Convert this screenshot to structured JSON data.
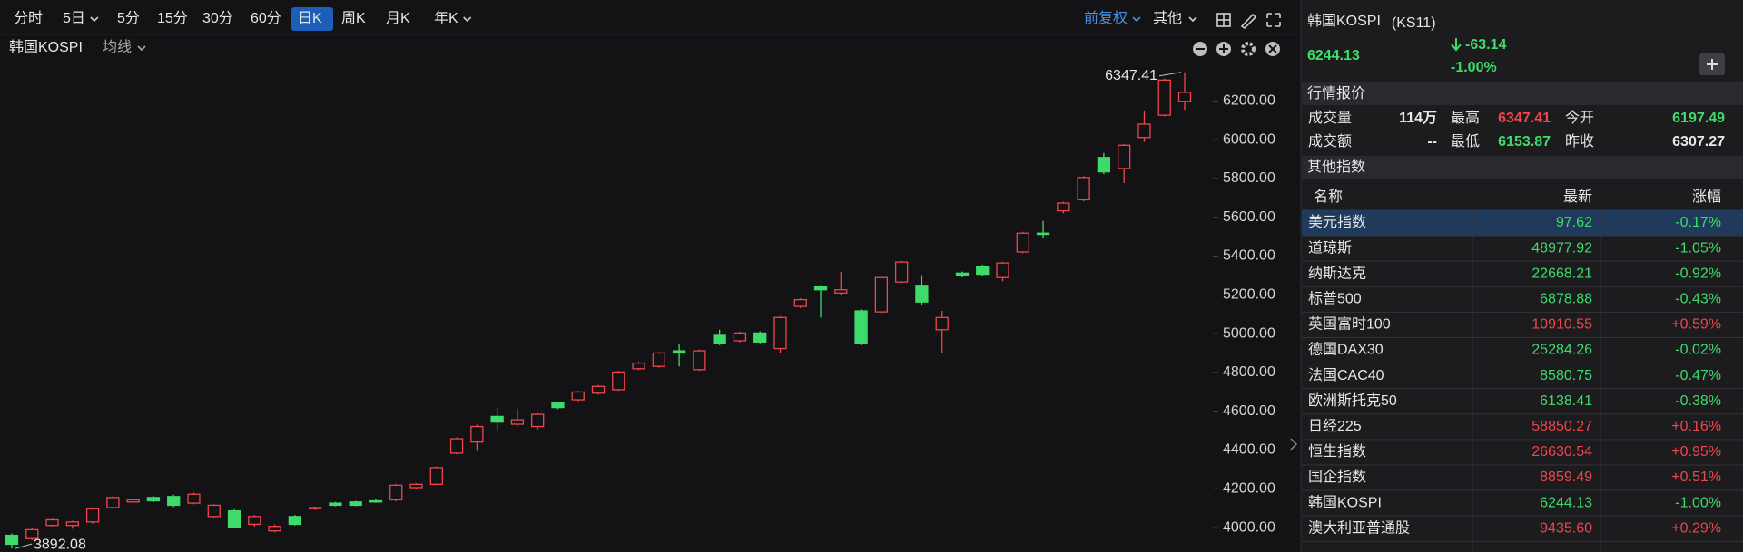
{
  "toolbar": {
    "periods": [
      "分时",
      "5日",
      "5分",
      "15分",
      "30分",
      "60分",
      "日K",
      "周K",
      "月K",
      "年K"
    ],
    "selected": 6,
    "adjust": "前复权",
    "other": "其他"
  },
  "chart_data": {
    "type": "candlestick",
    "title": "韩国KOSPI",
    "indicator": "均线",
    "up_color": "#f0454a",
    "down_color": "#3ddc6a",
    "ohlc": [
      [
        3960,
        3970,
        3892.08,
        3914
      ],
      [
        3943,
        4000,
        3935,
        3989
      ],
      [
        4011,
        4050,
        4005,
        4040
      ],
      [
        4011,
        4035,
        3994,
        4029
      ],
      [
        4029,
        4105,
        4020,
        4097
      ],
      [
        4103,
        4165,
        4095,
        4155
      ],
      [
        4132,
        4150,
        4125,
        4143
      ],
      [
        4155,
        4165,
        4130,
        4138
      ],
      [
        4160,
        4170,
        4105,
        4115
      ],
      [
        4126,
        4180,
        4120,
        4172
      ],
      [
        4057,
        4120,
        4050,
        4115
      ],
      [
        4086,
        4095,
        3995,
        4000
      ],
      [
        4017,
        4065,
        4005,
        4057
      ],
      [
        3983,
        4015,
        3975,
        4006
      ],
      [
        4057,
        4065,
        4010,
        4017
      ],
      [
        4097,
        4108,
        4090,
        4103
      ],
      [
        4126,
        4132,
        4110,
        4115
      ],
      [
        4132,
        4138,
        4110,
        4115
      ],
      [
        4138,
        4145,
        4128,
        4132
      ],
      [
        4143,
        4225,
        4135,
        4218
      ],
      [
        4206,
        4228,
        4200,
        4223
      ],
      [
        4223,
        4315,
        4218,
        4309
      ],
      [
        4384,
        4465,
        4378,
        4458
      ],
      [
        4441,
        4530,
        4395,
        4521
      ],
      [
        4573,
        4619,
        4499,
        4544
      ],
      [
        4533,
        4613,
        4525,
        4556
      ],
      [
        4521,
        4590,
        4505,
        4584
      ],
      [
        4642,
        4650,
        4610,
        4619
      ],
      [
        4659,
        4705,
        4652,
        4699
      ],
      [
        4693,
        4735,
        4686,
        4728
      ],
      [
        4711,
        4808,
        4705,
        4802
      ],
      [
        4819,
        4855,
        4812,
        4848
      ],
      [
        4831,
        4905,
        4825,
        4900
      ],
      [
        4911,
        4945,
        4831,
        4900
      ],
      [
        4814,
        4918,
        4808,
        4911
      ],
      [
        4991,
        5020,
        4940,
        4951
      ],
      [
        4963,
        5010,
        4955,
        5003
      ],
      [
        5003,
        5012,
        4950,
        4957
      ],
      [
        4923,
        5090,
        4900,
        5083
      ],
      [
        5140,
        5182,
        5132,
        5175
      ],
      [
        5243,
        5250,
        5083,
        5226
      ],
      [
        5209,
        5318,
        5200,
        5226
      ],
      [
        5117,
        5125,
        4940,
        4951
      ],
      [
        5112,
        5296,
        5105,
        5289
      ],
      [
        5266,
        5375,
        5258,
        5369
      ],
      [
        5249,
        5301,
        5150,
        5163
      ],
      [
        5020,
        5117,
        4900,
        5083
      ],
      [
        5312,
        5320,
        5290,
        5301
      ],
      [
        5347,
        5355,
        5298,
        5306
      ],
      [
        5289,
        5370,
        5270,
        5364
      ],
      [
        5421,
        5525,
        5415,
        5518
      ],
      [
        5518,
        5581,
        5490,
        5513
      ],
      [
        5633,
        5680,
        5620,
        5673
      ],
      [
        5690,
        5812,
        5682,
        5805
      ],
      [
        5908,
        5931,
        5822,
        5834
      ],
      [
        5851,
        5978,
        5776,
        5971
      ],
      [
        6011,
        6149,
        5988,
        6080
      ],
      [
        6126,
        6315,
        6120,
        6307.27
      ],
      [
        6197.49,
        6347.41,
        6153.87,
        6244.13
      ]
    ],
    "ylim": [
      3874,
      6407
    ],
    "yticks": [
      {
        "value": 4000,
        "label": "4000.00"
      },
      {
        "value": 4200,
        "label": "4200.00"
      },
      {
        "value": 4400,
        "label": "4400.00"
      },
      {
        "value": 4600,
        "label": "4600.00"
      },
      {
        "value": 4800,
        "label": "4800.00"
      },
      {
        "value": 5000,
        "label": "5000.00"
      },
      {
        "value": 5200,
        "label": "5200.00"
      },
      {
        "value": 5400,
        "label": "5400.00"
      },
      {
        "value": 5600,
        "label": "5600.00"
      },
      {
        "value": 5800,
        "label": "5800.00"
      },
      {
        "value": 6000,
        "label": "6000.00"
      },
      {
        "value": 6200,
        "label": "6200.00"
      }
    ],
    "grid": false
  },
  "quote": {
    "name": "韩国KOSPI",
    "code": "(KS11)",
    "price": "6244.13",
    "change": "-63.14",
    "change_pct": "-1.00%",
    "section": "行情报价",
    "stats": [
      {
        "label": "成交量",
        "value": "114万",
        "color": "#e8e8e8"
      },
      {
        "label": "最高",
        "value": "6347.41",
        "color": "#f0454a"
      },
      {
        "label": "今开",
        "value": "6197.49",
        "color": "#3ddc6a"
      },
      {
        "label": "成交额",
        "value": "--",
        "color": "#e8e8e8"
      },
      {
        "label": "最低",
        "value": "6153.87",
        "color": "#3ddc6a"
      },
      {
        "label": "昨收",
        "value": "6307.27",
        "color": "#e8e8e8"
      }
    ]
  },
  "indices": {
    "title": "其他指数",
    "columns": [
      "名称",
      "最新",
      "涨幅"
    ],
    "selected": 0,
    "rows": [
      [
        "美元指数",
        "97.62",
        "-0.17%"
      ],
      [
        "道琼斯",
        "48977.92",
        "-1.05%"
      ],
      [
        "纳斯达克",
        "22668.21",
        "-0.92%"
      ],
      [
        "标普500",
        "6878.88",
        "-0.43%"
      ],
      [
        "英国富时100",
        "10910.55",
        "+0.59%"
      ],
      [
        "德国DAX30",
        "25284.26",
        "-0.02%"
      ],
      [
        "法国CAC40",
        "8580.75",
        "-0.47%"
      ],
      [
        "欧洲斯托克50",
        "6138.41",
        "-0.38%"
      ],
      [
        "日经225",
        "58850.27",
        "+0.16%"
      ],
      [
        "恒生指数",
        "26630.54",
        "+0.95%"
      ],
      [
        "国企指数",
        "8859.49",
        "+0.51%"
      ],
      [
        "韩国KOSPI",
        "6244.13",
        "-1.00%"
      ],
      [
        "澳大利亚普通股",
        "9435.60",
        "+0.29%"
      ]
    ]
  }
}
